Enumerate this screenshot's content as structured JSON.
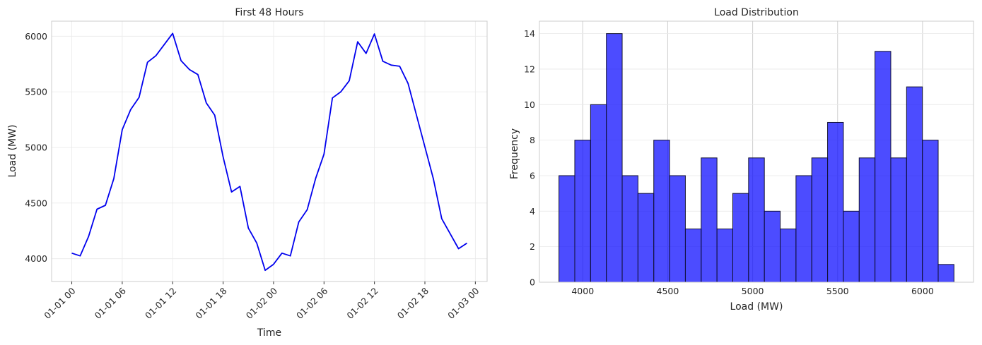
{
  "chart_data": [
    {
      "type": "line",
      "title": "First 48 Hours",
      "xlabel": "Time",
      "ylabel": "Load (MW)",
      "x_ticks": [
        "01-01 00",
        "01-01 06",
        "01-01 12",
        "01-01 18",
        "01-02 00",
        "01-02 06",
        "01-02 12",
        "01-02 18",
        "01-03 00"
      ],
      "x_tick_hours": [
        0,
        6,
        12,
        18,
        24,
        30,
        36,
        42,
        48
      ],
      "y_ticks": [
        4000,
        4500,
        5000,
        5500,
        6000
      ],
      "xlim_hours": [
        -2.4,
        49.4
      ],
      "ylim": [
        3795,
        6135
      ],
      "grid": true,
      "color": "#0000ee",
      "series": [
        {
          "x_hours": [
            0,
            1,
            2,
            3,
            4,
            5,
            6,
            7,
            8,
            9,
            10,
            11,
            12,
            13,
            14,
            15,
            16,
            17,
            18,
            19,
            20,
            21,
            22,
            23,
            24,
            25,
            26,
            27,
            28,
            29,
            30,
            31,
            32,
            33,
            34,
            35,
            36,
            37,
            38,
            39,
            40,
            41,
            42,
            43,
            44,
            45,
            46,
            47
          ],
          "values": [
            4050,
            4025,
            4200,
            4445,
            4480,
            4720,
            5160,
            5340,
            5450,
            5765,
            5825,
            5925,
            6025,
            5780,
            5700,
            5655,
            5400,
            5290,
            4915,
            4600,
            4650,
            4275,
            4140,
            3895,
            3950,
            4050,
            4025,
            4330,
            4440,
            4720,
            4940,
            5445,
            5500,
            5600,
            5950,
            5845,
            6020,
            5775,
            5740,
            5730,
            5575,
            5290,
            5005,
            4720,
            4360,
            4225,
            4090,
            4140
          ]
        }
      ]
    },
    {
      "type": "bar",
      "title": "Load Distribution",
      "xlabel": "Load (MW)",
      "ylabel": "Frequency",
      "x_ticks": [
        4000,
        4500,
        5000,
        5500,
        6000
      ],
      "y_ticks": [
        0,
        2,
        4,
        6,
        8,
        10,
        12,
        14
      ],
      "xlim": [
        3745,
        6300
      ],
      "ylim": [
        0,
        14.7
      ],
      "grid": true,
      "color": "#0000ff",
      "bin_start": 3860,
      "bin_width": 93,
      "values": [
        6,
        8,
        10,
        14,
        6,
        5,
        8,
        6,
        3,
        7,
        3,
        5,
        7,
        4,
        3,
        6,
        7,
        9,
        4,
        7,
        13,
        7,
        11,
        8,
        1
      ]
    }
  ]
}
